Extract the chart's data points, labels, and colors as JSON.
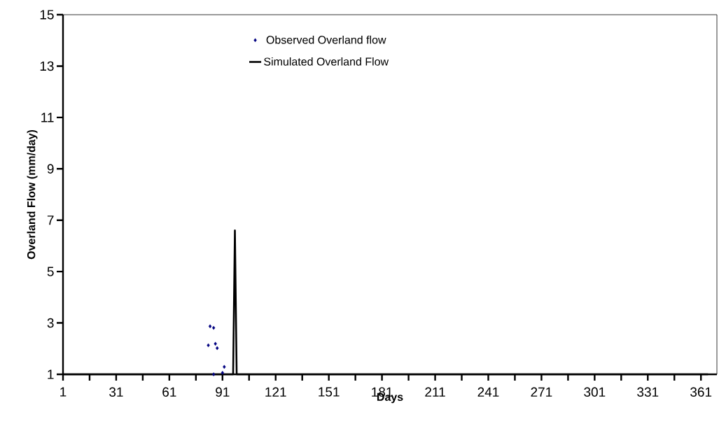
{
  "chart_data": {
    "type": "scatter",
    "xlabel": "Days",
    "ylabel": "Overland Flow (mm/day)",
    "xlim": [
      1,
      370
    ],
    "ylim": [
      1,
      15
    ],
    "xticks": [
      1,
      {
        "value": 16,
        "label": null
      },
      31,
      {
        "value": 46,
        "label": null
      },
      61,
      {
        "value": 76,
        "label": null
      },
      91,
      {
        "value": 106,
        "label": null
      },
      121,
      {
        "value": 136,
        "label": null
      },
      151,
      {
        "value": 166,
        "label": null
      },
      181,
      {
        "value": 196,
        "label": null
      },
      211,
      {
        "value": 226,
        "label": null
      },
      241,
      {
        "value": 256,
        "label": null
      },
      271,
      {
        "value": 286,
        "label": null
      },
      301,
      {
        "value": 316,
        "label": null
      },
      331,
      {
        "value": 346,
        "label": null
      },
      361
    ],
    "yticks": [
      1,
      3,
      5,
      7,
      9,
      11,
      13,
      15
    ],
    "grid": false,
    "legend": "top",
    "series": [
      {
        "name": "Observed Overland flow",
        "marker": "diamond",
        "color": "#000080",
        "x": [
          83,
          84,
          86,
          86,
          87,
          88,
          91,
          92
        ],
        "values": [
          2.13,
          2.87,
          1.0,
          2.81,
          2.19,
          2.02,
          1.06,
          1.29
        ]
      },
      {
        "name": "Simulated Overland Flow",
        "type": "line",
        "marker": "none",
        "line_style": "solid",
        "color": "#000000",
        "x": [
          1,
          97,
          98,
          99,
          365
        ],
        "values": [
          1,
          1,
          6.6,
          1,
          1
        ]
      }
    ]
  }
}
